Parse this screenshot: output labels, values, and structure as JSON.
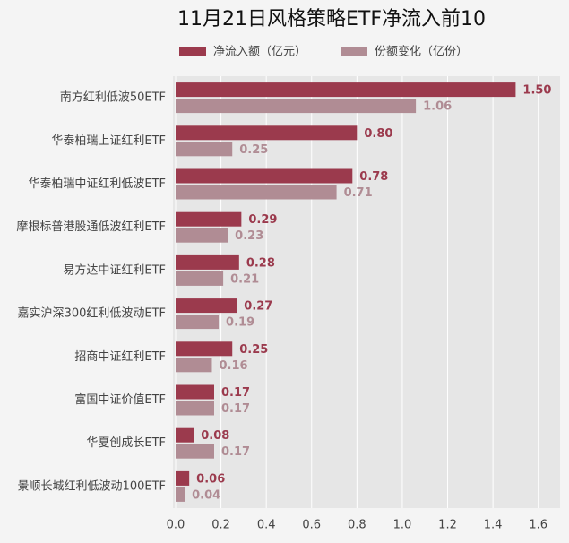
{
  "chart_data": {
    "type": "bar",
    "orientation": "horizontal",
    "title": "11月21日风格策略ETF净流入前10",
    "categories": [
      "南方红利低波50ETF",
      "华泰柏瑞上证红利ETF",
      "华泰柏瑞中证红利低波ETF",
      "摩根标普港股通低波红利ETF",
      "易方达中证红利ETF",
      "嘉实沪深300红利低波动ETF",
      "招商中证红利ETF",
      "富国中证价值ETF",
      "华夏创成长ETF",
      "景顺长城红利低波动100ETF"
    ],
    "series": [
      {
        "name": "净流入额（亿元）",
        "color": "#9b3a4d",
        "values": [
          1.5,
          0.8,
          0.78,
          0.29,
          0.28,
          0.27,
          0.25,
          0.17,
          0.08,
          0.06
        ],
        "value_labels": [
          "1.50",
          "0.80",
          "0.78",
          "0.29",
          "0.28",
          "0.27",
          "0.25",
          "0.17",
          "0.08",
          "0.06"
        ]
      },
      {
        "name": "份额变化（亿份）",
        "color": "#b08c94",
        "values": [
          1.06,
          0.25,
          0.71,
          0.23,
          0.21,
          0.19,
          0.16,
          0.17,
          0.17,
          0.04
        ]
      }
    ],
    "xlim": [
      0,
      1.7
    ],
    "xticks": [
      {
        "value": 0,
        "label": "0.0"
      },
      0.2,
      0.4,
      0.6,
      0.8,
      {
        "value": 1,
        "label": "1.0"
      },
      1.2,
      1.4,
      1.6
    ],
    "grid": true
  }
}
